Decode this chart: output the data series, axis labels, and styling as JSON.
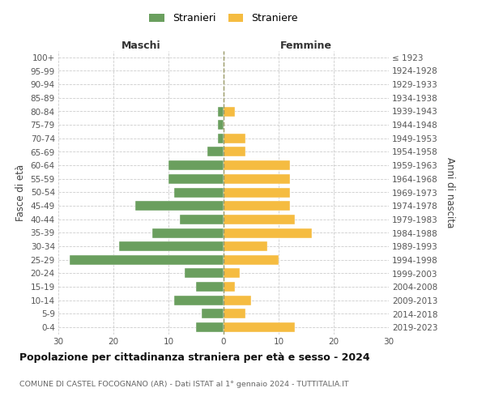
{
  "age_groups": [
    "100+",
    "95-99",
    "90-94",
    "85-89",
    "80-84",
    "75-79",
    "70-74",
    "65-69",
    "60-64",
    "55-59",
    "50-54",
    "45-49",
    "40-44",
    "35-39",
    "30-34",
    "25-29",
    "20-24",
    "15-19",
    "10-14",
    "5-9",
    "0-4"
  ],
  "birth_years": [
    "≤ 1923",
    "1924-1928",
    "1929-1933",
    "1934-1938",
    "1939-1943",
    "1944-1948",
    "1949-1953",
    "1954-1958",
    "1959-1963",
    "1964-1968",
    "1969-1973",
    "1974-1978",
    "1979-1983",
    "1984-1988",
    "1989-1993",
    "1994-1998",
    "1999-2003",
    "2004-2008",
    "2009-2013",
    "2014-2018",
    "2019-2023"
  ],
  "maschi": [
    0,
    0,
    0,
    0,
    1,
    1,
    1,
    3,
    10,
    10,
    9,
    16,
    8,
    13,
    19,
    28,
    7,
    5,
    9,
    4,
    5
  ],
  "femmine": [
    0,
    0,
    0,
    0,
    2,
    0,
    4,
    4,
    12,
    12,
    12,
    12,
    13,
    16,
    8,
    10,
    3,
    2,
    5,
    4,
    13
  ],
  "male_color": "#6a9f5e",
  "female_color": "#f5bc41",
  "grid_color": "#cccccc",
  "center_line_color": "#999966",
  "title": "Popolazione per cittadinanza straniera per età e sesso - 2024",
  "subtitle": "COMUNE DI CASTEL FOCOGNANO (AR) - Dati ISTAT al 1° gennaio 2024 - TUTTITALIA.IT",
  "header_left": "Maschi",
  "header_right": "Femmine",
  "ylabel_left": "Fasce di età",
  "ylabel_right": "Anni di nascita",
  "legend_male": "Stranieri",
  "legend_female": "Straniere",
  "xlim": 30
}
